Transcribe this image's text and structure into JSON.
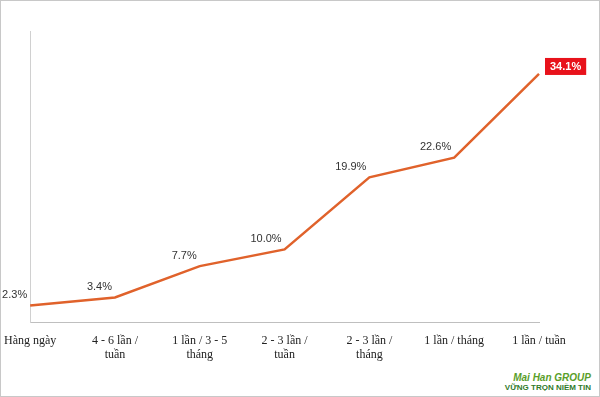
{
  "chart_data": {
    "type": "line",
    "categories": [
      "Hàng ngày",
      "4 - 6 lần / tuần",
      "1 lần / 3 - 5 tháng",
      "2 - 3 lần / tuần",
      "2 - 3 lần / tháng",
      "1 lần / tháng",
      "1 lần / tuần"
    ],
    "values": [
      2.3,
      3.4,
      7.7,
      10.0,
      19.9,
      22.6,
      34.1
    ],
    "value_labels": [
      "2.3%",
      "3.4%",
      "7.7%",
      "10.0%",
      "19.9%",
      "22.6%",
      "34.1%"
    ],
    "color": "#e0622b",
    "marker": "none",
    "ylim": [
      0,
      40
    ],
    "grid": false,
    "data_labels": true,
    "tick_labels": "x",
    "annotations": [
      "Mai Han GROUP",
      "VỮNG TRỌN NIỀM TIN"
    ]
  }
}
